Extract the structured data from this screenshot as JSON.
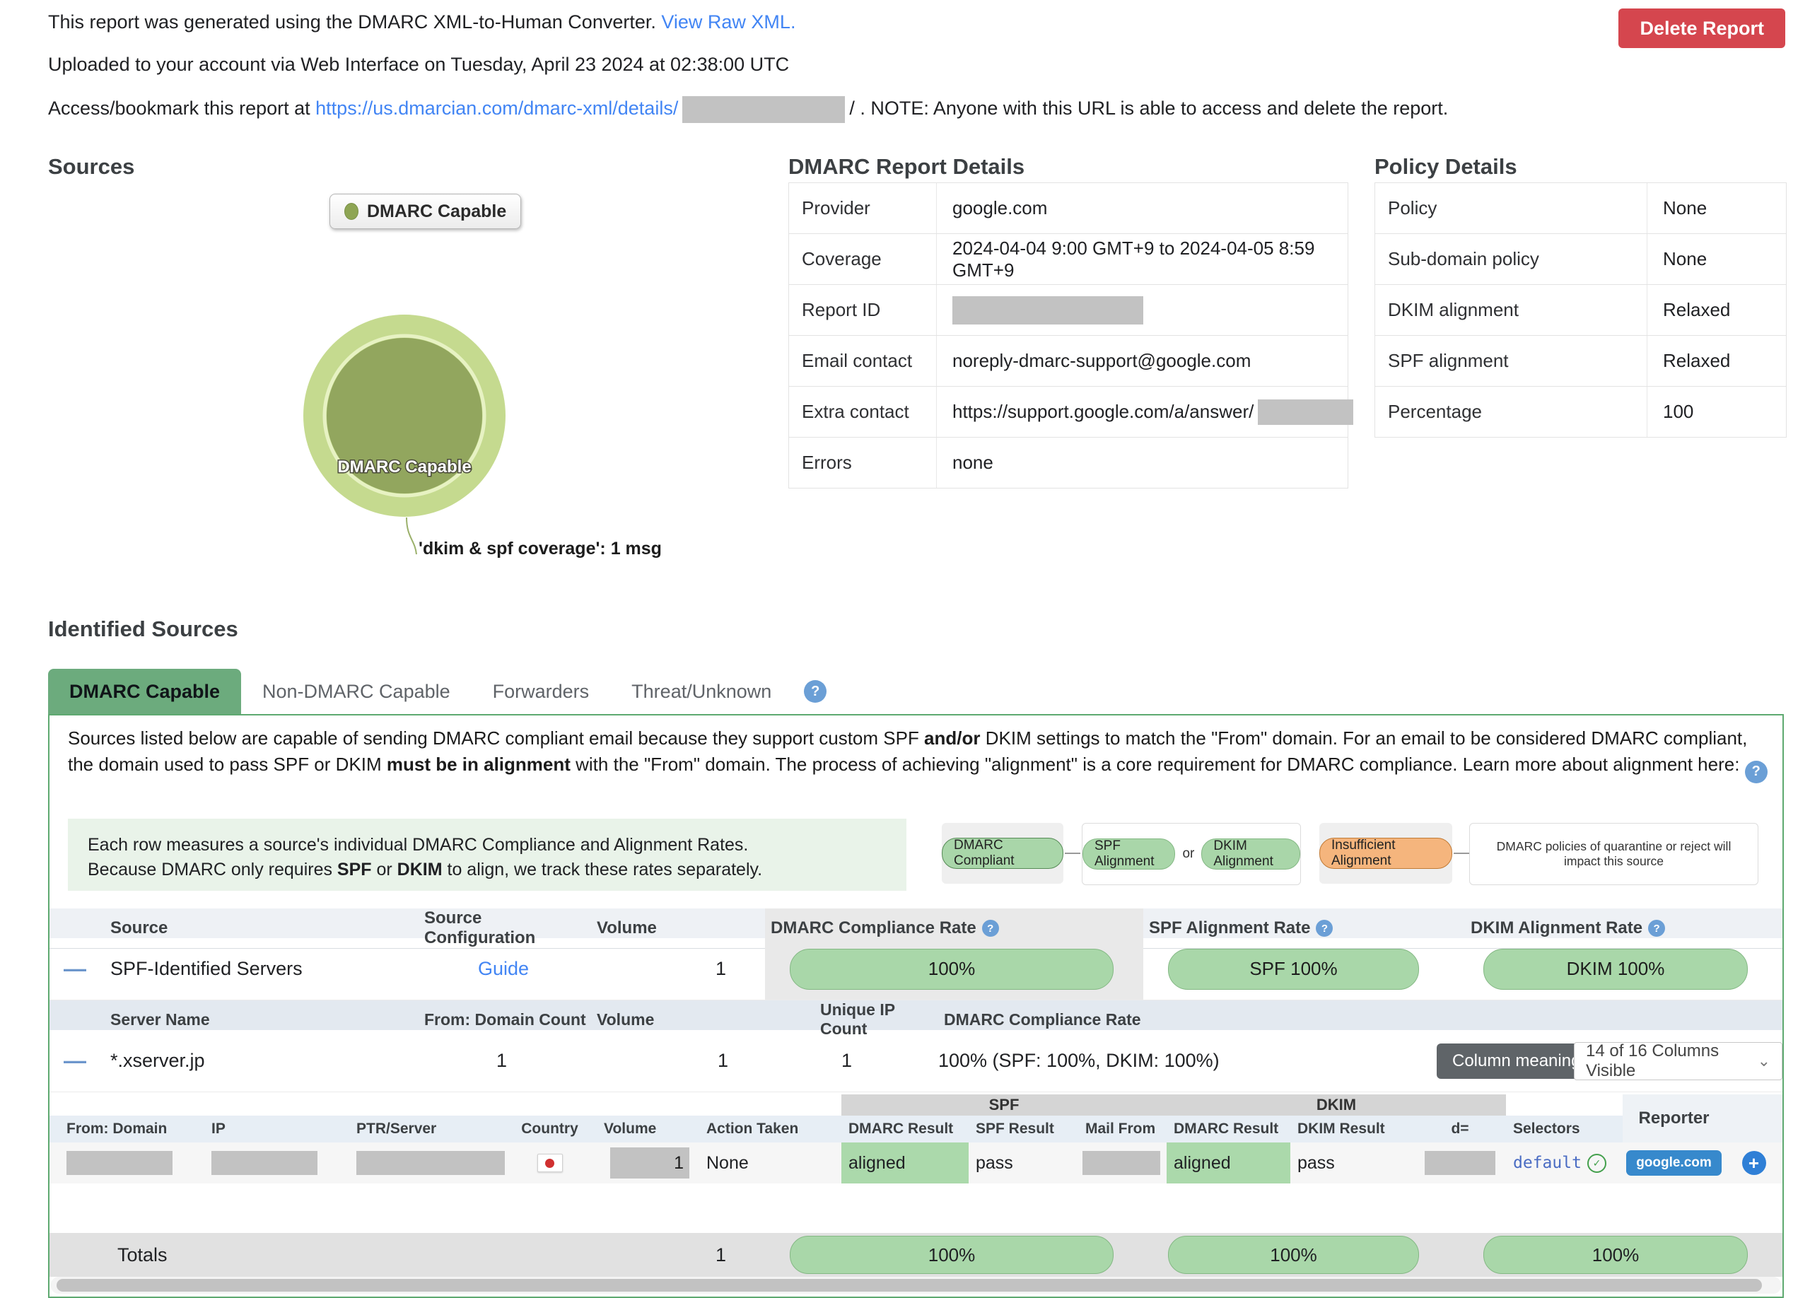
{
  "icons": {
    "question": "?",
    "plus": "+",
    "check": "✓",
    "minus": "—",
    "chevron": "⌄"
  },
  "header": {
    "generated_text": "This report was generated using the DMARC XML-to-Human Converter. ",
    "view_raw_link": "View Raw XML.",
    "uploaded_text": "Uploaded to your account via Web Interface on Tuesday, April 23 2024 at 02:38:00 UTC",
    "access_prefix": "Access/bookmark this report at ",
    "access_link": "https://us.dmarcian.com/dmarc-xml/details/",
    "access_suffix": "/ . NOTE: Anyone with this URL is able to access and delete the report.",
    "delete_button": "Delete Report"
  },
  "sources": {
    "title": "Sources",
    "legend_label": "DMARC Capable",
    "slice_label": "DMARC Capable",
    "tooltip": "'dkim & spf coverage': 1 msg"
  },
  "chart_data": {
    "type": "pie",
    "title": "Sources",
    "categories": [
      "DMARC Capable"
    ],
    "values": [
      1
    ],
    "legend_position": "top",
    "annotations": [
      "'dkim & spf coverage': 1 msg"
    ],
    "colors": {
      "outer_ring": "#c5da8f",
      "inner": "#92a65e"
    }
  },
  "report_details": {
    "title": "DMARC Report Details",
    "labels": {
      "provider": "Provider",
      "coverage": "Coverage",
      "report_id": "Report ID",
      "email_contact": "Email contact",
      "extra_contact": "Extra contact",
      "errors": "Errors"
    },
    "values": {
      "provider": "google.com",
      "coverage": "2024-04-04 9:00 GMT+9 to 2024-04-05 8:59 GMT+9",
      "email_contact": "noreply-dmarc-support@google.com",
      "extra_contact": "https://support.google.com/a/answer/",
      "errors": "none"
    }
  },
  "policy_details": {
    "title": "Policy Details",
    "rows": [
      {
        "label": "Policy",
        "value": "None"
      },
      {
        "label": "Sub-domain policy",
        "value": "None"
      },
      {
        "label": "DKIM alignment",
        "value": "Relaxed"
      },
      {
        "label": "SPF alignment",
        "value": "Relaxed"
      },
      {
        "label": "Percentage",
        "value": "100"
      }
    ]
  },
  "identified_sources": {
    "title": "Identified Sources",
    "tabs": [
      {
        "label": "DMARC Capable"
      },
      {
        "label": "Non-DMARC Capable"
      },
      {
        "label": "Forwarders"
      },
      {
        "label": "Threat/Unknown"
      }
    ],
    "description_segments": [
      {
        "text": "Sources listed below are capable of sending DMARC compliant email because they support custom SPF "
      },
      {
        "text": "and/or",
        "bold": true
      },
      {
        "text": " DKIM settings to match the \"From\" domain. For an email to be considered DMARC compliant, the domain used to pass SPF or DKIM "
      },
      {
        "text": "must be in alignment",
        "bold": true
      },
      {
        "text": " with the \"From\" domain. The process of achieving \"alignment\" is a core requirement for DMARC compliance. Learn more about alignment here: "
      }
    ],
    "info_line1_segments": [
      {
        "text": "Each row measures a source's individual DMARC Compliance and Alignment Rates."
      }
    ],
    "info_line2_segments": [
      {
        "text": "Because DMARC only requires "
      },
      {
        "text": "SPF",
        "bold": true
      },
      {
        "text": " or "
      },
      {
        "text": "DKIM",
        "bold": true
      },
      {
        "text": " to align, we track these rates separately."
      }
    ],
    "legend": {
      "compliant": "DMARC Compliant",
      "spf": "SPF Alignment",
      "or": "or",
      "dkim": "DKIM Alignment",
      "insufficient": "Insufficient Alignment",
      "note": "DMARC policies of quarantine or reject will impact this source"
    },
    "summary_table": {
      "headers": {
        "source": "Source",
        "config": "Source Configuration",
        "volume": "Volume",
        "dmarc_rate": "DMARC Compliance Rate",
        "spf_rate": "SPF Alignment Rate",
        "dkim_rate": "DKIM Alignment Rate"
      },
      "row": {
        "source": "SPF-Identified Servers",
        "config_link": "Guide",
        "volume": "1",
        "dmarc_pill": "100%",
        "spf_pill": "SPF 100%",
        "dkim_pill": "DKIM 100%"
      }
    },
    "server_table": {
      "headers": {
        "server": "Server Name",
        "from_count": "From: Domain Count",
        "volume": "Volume",
        "unique_ip": "Unique IP Count",
        "rate": "DMARC Compliance Rate"
      },
      "row": {
        "server": "*.xserver.jp",
        "from_count": "1",
        "volume": "1",
        "unique_ip": "1",
        "rate": "100% (SPF: 100%, DKIM: 100%)"
      },
      "column_meaning_button": "Column meaning",
      "columns_visible": "14 of 16 Columns Visible"
    },
    "detail_table": {
      "groups": {
        "spf": "SPF",
        "dkim": "DKIM",
        "reporter": "Reporter"
      },
      "headers": [
        "From: Domain",
        "IP",
        "PTR/Server",
        "Country",
        "Volume",
        "Action Taken",
        "DMARC Result",
        "SPF Result",
        "Mail From",
        "DMARC Result",
        "DKIM Result",
        "d=",
        "Selectors"
      ],
      "row": {
        "volume": "1",
        "action": "None",
        "spf_dmarc": "aligned",
        "spf_result": "pass",
        "dkim_dmarc": "aligned",
        "dkim_result": "pass",
        "selector": "default",
        "reporter": "google.com"
      }
    },
    "totals": {
      "label": "Totals",
      "volume": "1",
      "dmarc": "100%",
      "spf": "100%",
      "dkim": "100%"
    }
  }
}
